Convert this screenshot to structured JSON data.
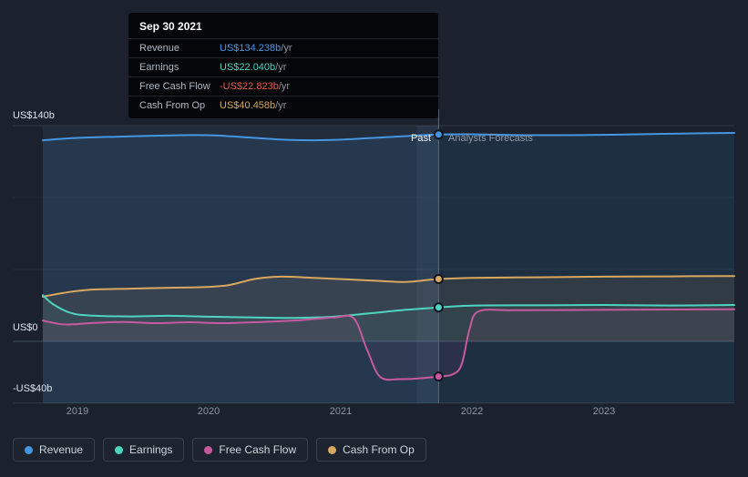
{
  "tooltip": {
    "title": "Sep 30 2021",
    "rows": [
      {
        "label": "Revenue",
        "value": "US$134.238b",
        "suffix": " /yr",
        "color": "#4596e0"
      },
      {
        "label": "Earnings",
        "value": "US$22.040b",
        "suffix": " /yr",
        "color": "#4fd4bf"
      },
      {
        "label": "Free Cash Flow",
        "value": "-US$22.823b",
        "suffix": " /yr",
        "color": "#e4574e"
      },
      {
        "label": "Cash From Op",
        "value": "US$40.458b",
        "suffix": " /yr",
        "color": "#d9a85e"
      }
    ]
  },
  "annotations": {
    "past": "Past",
    "forecast": "Analysts Forecasts"
  },
  "axis": {
    "y_labels": [
      {
        "text": "US$140b",
        "value": 140
      },
      {
        "text": "US$0",
        "value": 0
      },
      {
        "text": "-US$40b",
        "value": -40
      }
    ],
    "x_labels": [
      "2019",
      "2020",
      "2021",
      "2022",
      "2023"
    ]
  },
  "legend": [
    {
      "label": "Revenue",
      "color": "#4596e0"
    },
    {
      "label": "Earnings",
      "color": "#4fd4bf"
    },
    {
      "label": "Free Cash Flow",
      "color": "#c75a9e"
    },
    {
      "label": "Cash From Op",
      "color": "#d9a85e"
    }
  ],
  "chart_data": {
    "type": "line",
    "title": "",
    "xlabel": "year",
    "ylabel": "US$ billions",
    "x_axis": {
      "range": [
        2018.74,
        2023.99
      ],
      "ticks": [
        2019,
        2020,
        2021,
        2022,
        2023
      ]
    },
    "y_axis": {
      "range": [
        -47,
        150
      ],
      "gridlines": [
        140,
        93.33,
        46.67,
        0,
        -40
      ]
    },
    "divider_x": 2021.745,
    "legend_position": "bottom",
    "series": [
      {
        "name": "Revenue",
        "color": "#4596e0",
        "fill_to": "bottom",
        "fill_opacity": 0.12,
        "divider_value": 134.238,
        "points": [
          [
            2018.74,
            130.5
          ],
          [
            2019.0,
            132.0
          ],
          [
            2019.4,
            133.0
          ],
          [
            2019.8,
            133.8
          ],
          [
            2020.05,
            133.6
          ],
          [
            2020.3,
            132.3
          ],
          [
            2020.6,
            130.8
          ],
          [
            2020.9,
            130.6
          ],
          [
            2021.2,
            131.8
          ],
          [
            2021.5,
            133.2
          ],
          [
            2021.745,
            134.238
          ],
          [
            2022.0,
            134.4
          ],
          [
            2022.4,
            133.8
          ],
          [
            2022.9,
            133.9
          ],
          [
            2023.4,
            134.6
          ],
          [
            2023.99,
            135.3
          ]
        ]
      },
      {
        "name": "Cash From Op",
        "color": "#d9a85e",
        "fill_to": "zero",
        "fill_opacity": 0.1,
        "divider_value": 40.458,
        "points": [
          [
            2018.74,
            29.0
          ],
          [
            2018.9,
            31.5
          ],
          [
            2019.1,
            33.5
          ],
          [
            2019.4,
            34.2
          ],
          [
            2019.7,
            34.8
          ],
          [
            2019.95,
            35.2
          ],
          [
            2020.15,
            36.5
          ],
          [
            2020.35,
            40.5
          ],
          [
            2020.55,
            42.0
          ],
          [
            2020.8,
            41.2
          ],
          [
            2021.05,
            40.2
          ],
          [
            2021.3,
            39.2
          ],
          [
            2021.5,
            38.6
          ],
          [
            2021.745,
            40.458
          ],
          [
            2022.0,
            41.2
          ],
          [
            2022.5,
            41.6
          ],
          [
            2023.0,
            42.0
          ],
          [
            2023.5,
            42.2
          ],
          [
            2023.99,
            42.4
          ]
        ]
      },
      {
        "name": "Earnings",
        "color": "#4fd4bf",
        "fill_to": "zero",
        "fill_opacity": 0.06,
        "divider_value": 22.04,
        "points": [
          [
            2018.74,
            30.0
          ],
          [
            2018.82,
            24.0
          ],
          [
            2018.95,
            18.5
          ],
          [
            2019.1,
            16.8
          ],
          [
            2019.4,
            16.2
          ],
          [
            2019.7,
            16.6
          ],
          [
            2020.0,
            16.0
          ],
          [
            2020.3,
            15.6
          ],
          [
            2020.6,
            15.2
          ],
          [
            2020.9,
            15.8
          ],
          [
            2021.2,
            18.0
          ],
          [
            2021.5,
            20.5
          ],
          [
            2021.745,
            22.04
          ],
          [
            2022.0,
            23.2
          ],
          [
            2022.5,
            23.4
          ],
          [
            2023.0,
            23.6
          ],
          [
            2023.5,
            23.3
          ],
          [
            2023.99,
            23.6
          ]
        ]
      },
      {
        "name": "Free Cash Flow",
        "color": "#c75a9e",
        "fill_to": "zero",
        "fill_opacity": 0.07,
        "divider_value": -22.823,
        "points": [
          [
            2018.74,
            13.5
          ],
          [
            2018.9,
            11.0
          ],
          [
            2019.1,
            11.8
          ],
          [
            2019.35,
            12.6
          ],
          [
            2019.6,
            11.8
          ],
          [
            2019.85,
            12.4
          ],
          [
            2020.1,
            11.8
          ],
          [
            2020.4,
            12.6
          ],
          [
            2020.7,
            13.8
          ],
          [
            2020.95,
            15.5
          ],
          [
            2021.1,
            15.0
          ],
          [
            2021.2,
            -5.0
          ],
          [
            2021.3,
            -23.0
          ],
          [
            2021.45,
            -24.5
          ],
          [
            2021.6,
            -24.0
          ],
          [
            2021.745,
            -22.823
          ],
          [
            2021.85,
            -21.5
          ],
          [
            2021.92,
            -15.0
          ],
          [
            2021.98,
            8.0
          ],
          [
            2022.05,
            19.5
          ],
          [
            2022.3,
            20.2
          ],
          [
            2022.8,
            20.4
          ],
          [
            2023.3,
            20.6
          ],
          [
            2023.99,
            20.8
          ]
        ]
      }
    ]
  }
}
